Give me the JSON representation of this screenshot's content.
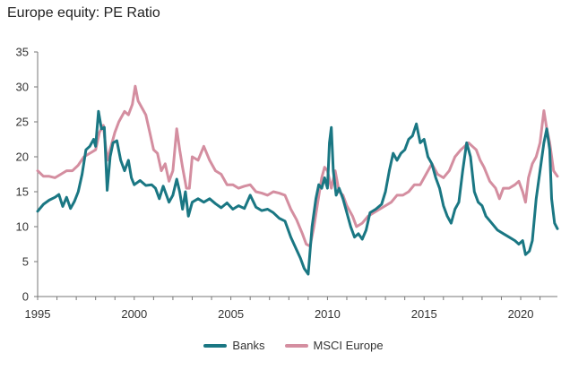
{
  "chart_data": {
    "type": "line",
    "title": "Europe equity: PE Ratio",
    "xlabel": "",
    "ylabel": "",
    "xlim": [
      1995,
      2021.9
    ],
    "ylim": [
      0,
      35
    ],
    "x_ticks": [
      1995,
      2000,
      2005,
      2010,
      2015,
      2020
    ],
    "y_ticks": [
      0,
      5,
      10,
      15,
      20,
      25,
      30,
      35
    ],
    "grid": false,
    "legend_position": "bottom",
    "series": [
      {
        "name": "Banks",
        "color": "#1a7783",
        "points": [
          [
            1995.0,
            12.2
          ],
          [
            1995.3,
            13.2
          ],
          [
            1995.6,
            13.8
          ],
          [
            1995.9,
            14.2
          ],
          [
            1996.1,
            14.6
          ],
          [
            1996.3,
            12.9
          ],
          [
            1996.5,
            14.2
          ],
          [
            1996.7,
            12.6
          ],
          [
            1996.9,
            13.6
          ],
          [
            1997.1,
            15.0
          ],
          [
            1997.3,
            17.5
          ],
          [
            1997.5,
            21.0
          ],
          [
            1997.7,
            21.5
          ],
          [
            1997.9,
            22.5
          ],
          [
            1998.0,
            21.5
          ],
          [
            1998.15,
            26.5
          ],
          [
            1998.3,
            24.0
          ],
          [
            1998.45,
            24.2
          ],
          [
            1998.6,
            15.2
          ],
          [
            1998.75,
            20.0
          ],
          [
            1998.9,
            22.0
          ],
          [
            1999.1,
            22.3
          ],
          [
            1999.3,
            19.5
          ],
          [
            1999.5,
            18.0
          ],
          [
            1999.7,
            19.5
          ],
          [
            1999.85,
            17.0
          ],
          [
            2000.0,
            16.0
          ],
          [
            2000.3,
            16.6
          ],
          [
            2000.6,
            15.9
          ],
          [
            2000.9,
            16.0
          ],
          [
            2001.1,
            15.5
          ],
          [
            2001.3,
            14.0
          ],
          [
            2001.5,
            15.8
          ],
          [
            2001.8,
            13.5
          ],
          [
            2002.0,
            14.5
          ],
          [
            2002.2,
            16.8
          ],
          [
            2002.35,
            15.0
          ],
          [
            2002.5,
            12.5
          ],
          [
            2002.65,
            15.0
          ],
          [
            2002.8,
            11.5
          ],
          [
            2003.0,
            13.5
          ],
          [
            2003.3,
            14.0
          ],
          [
            2003.6,
            13.5
          ],
          [
            2003.9,
            14.0
          ],
          [
            2004.2,
            13.3
          ],
          [
            2004.5,
            12.7
          ],
          [
            2004.8,
            13.4
          ],
          [
            2005.1,
            12.5
          ],
          [
            2005.4,
            13.0
          ],
          [
            2005.7,
            12.6
          ],
          [
            2006.0,
            14.5
          ],
          [
            2006.3,
            12.8
          ],
          [
            2006.6,
            12.3
          ],
          [
            2006.9,
            12.5
          ],
          [
            2007.2,
            12.0
          ],
          [
            2007.5,
            11.2
          ],
          [
            2007.8,
            10.8
          ],
          [
            2008.1,
            8.5
          ],
          [
            2008.35,
            7.0
          ],
          [
            2008.6,
            5.5
          ],
          [
            2008.8,
            4.0
          ],
          [
            2009.0,
            3.2
          ],
          [
            2009.2,
            10.0
          ],
          [
            2009.4,
            14.0
          ],
          [
            2009.55,
            16.0
          ],
          [
            2009.7,
            15.5
          ],
          [
            2009.85,
            17.0
          ],
          [
            2010.0,
            15.5
          ],
          [
            2010.1,
            22.0
          ],
          [
            2010.2,
            24.2
          ],
          [
            2010.3,
            18.0
          ],
          [
            2010.45,
            14.5
          ],
          [
            2010.6,
            15.5
          ],
          [
            2010.8,
            14.0
          ],
          [
            2011.0,
            12.0
          ],
          [
            2011.2,
            10.0
          ],
          [
            2011.4,
            8.5
          ],
          [
            2011.6,
            9.0
          ],
          [
            2011.8,
            8.2
          ],
          [
            2012.0,
            9.5
          ],
          [
            2012.2,
            12.0
          ],
          [
            2012.5,
            12.5
          ],
          [
            2012.8,
            13.2
          ],
          [
            2013.0,
            15.0
          ],
          [
            2013.2,
            18.0
          ],
          [
            2013.4,
            20.5
          ],
          [
            2013.6,
            19.5
          ],
          [
            2013.8,
            20.5
          ],
          [
            2014.0,
            21.0
          ],
          [
            2014.2,
            22.5
          ],
          [
            2014.4,
            23.0
          ],
          [
            2014.6,
            24.7
          ],
          [
            2014.8,
            22.0
          ],
          [
            2015.0,
            22.5
          ],
          [
            2015.2,
            20.0
          ],
          [
            2015.4,
            19.0
          ],
          [
            2015.6,
            17.0
          ],
          [
            2015.8,
            15.5
          ],
          [
            2016.0,
            13.0
          ],
          [
            2016.2,
            11.5
          ],
          [
            2016.4,
            10.5
          ],
          [
            2016.6,
            12.5
          ],
          [
            2016.8,
            13.5
          ],
          [
            2017.0,
            18.0
          ],
          [
            2017.2,
            22.0
          ],
          [
            2017.4,
            20.0
          ],
          [
            2017.6,
            15.0
          ],
          [
            2017.8,
            13.5
          ],
          [
            2018.0,
            13.0
          ],
          [
            2018.2,
            11.5
          ],
          [
            2018.5,
            10.5
          ],
          [
            2018.8,
            9.5
          ],
          [
            2019.1,
            9.0
          ],
          [
            2019.4,
            8.5
          ],
          [
            2019.7,
            8.0
          ],
          [
            2019.9,
            7.5
          ],
          [
            2020.1,
            8.0
          ],
          [
            2020.25,
            6.0
          ],
          [
            2020.45,
            6.5
          ],
          [
            2020.6,
            8.0
          ],
          [
            2020.8,
            14.0
          ],
          [
            2021.0,
            18.0
          ],
          [
            2021.2,
            22.0
          ],
          [
            2021.35,
            24.0
          ],
          [
            2021.5,
            21.0
          ],
          [
            2021.6,
            14.0
          ],
          [
            2021.75,
            10.5
          ],
          [
            2021.9,
            9.7
          ]
        ]
      },
      {
        "name": "MSCI Europe",
        "color": "#d48ea0",
        "points": [
          [
            1995.0,
            18.0
          ],
          [
            1995.3,
            17.2
          ],
          [
            1995.6,
            17.2
          ],
          [
            1995.9,
            17.0
          ],
          [
            1996.2,
            17.5
          ],
          [
            1996.5,
            18.0
          ],
          [
            1996.8,
            18.0
          ],
          [
            1997.1,
            18.8
          ],
          [
            1997.4,
            20.0
          ],
          [
            1997.7,
            20.5
          ],
          [
            1998.0,
            21.0
          ],
          [
            1998.2,
            23.5
          ],
          [
            1998.4,
            24.5
          ],
          [
            1998.6,
            19.5
          ],
          [
            1998.8,
            21.5
          ],
          [
            1999.0,
            23.5
          ],
          [
            1999.2,
            25.0
          ],
          [
            1999.5,
            26.5
          ],
          [
            1999.7,
            26.0
          ],
          [
            1999.9,
            27.5
          ],
          [
            2000.05,
            30.1
          ],
          [
            2000.2,
            28.0
          ],
          [
            2000.4,
            27.0
          ],
          [
            2000.6,
            26.0
          ],
          [
            2000.8,
            23.5
          ],
          [
            2001.0,
            21.0
          ],
          [
            2001.2,
            20.5
          ],
          [
            2001.4,
            18.0
          ],
          [
            2001.6,
            19.0
          ],
          [
            2001.8,
            16.5
          ],
          [
            2002.0,
            18.0
          ],
          [
            2002.2,
            24.0
          ],
          [
            2002.35,
            21.0
          ],
          [
            2002.5,
            18.5
          ],
          [
            2002.7,
            15.5
          ],
          [
            2002.85,
            15.5
          ],
          [
            2003.0,
            20.0
          ],
          [
            2003.3,
            19.5
          ],
          [
            2003.6,
            21.5
          ],
          [
            2003.9,
            19.5
          ],
          [
            2004.2,
            18.0
          ],
          [
            2004.5,
            17.5
          ],
          [
            2004.8,
            16.0
          ],
          [
            2005.1,
            16.0
          ],
          [
            2005.4,
            15.5
          ],
          [
            2005.7,
            15.8
          ],
          [
            2006.0,
            16.0
          ],
          [
            2006.3,
            15.0
          ],
          [
            2006.6,
            14.8
          ],
          [
            2006.9,
            14.5
          ],
          [
            2007.2,
            15.0
          ],
          [
            2007.5,
            14.8
          ],
          [
            2007.8,
            14.5
          ],
          [
            2008.1,
            12.5
          ],
          [
            2008.4,
            11.0
          ],
          [
            2008.7,
            9.0
          ],
          [
            2008.9,
            7.5
          ],
          [
            2009.1,
            7.2
          ],
          [
            2009.3,
            10.0
          ],
          [
            2009.5,
            13.5
          ],
          [
            2009.7,
            17.0
          ],
          [
            2009.85,
            18.5
          ],
          [
            2010.0,
            18.0
          ],
          [
            2010.2,
            15.5
          ],
          [
            2010.4,
            18.0
          ],
          [
            2010.6,
            15.0
          ],
          [
            2010.8,
            14.5
          ],
          [
            2011.0,
            13.0
          ],
          [
            2011.3,
            11.5
          ],
          [
            2011.5,
            10.0
          ],
          [
            2011.8,
            10.5
          ],
          [
            2012.1,
            11.5
          ],
          [
            2012.4,
            12.0
          ],
          [
            2012.7,
            12.5
          ],
          [
            2013.0,
            13.0
          ],
          [
            2013.3,
            13.5
          ],
          [
            2013.6,
            14.5
          ],
          [
            2013.9,
            14.5
          ],
          [
            2014.2,
            15.0
          ],
          [
            2014.5,
            16.0
          ],
          [
            2014.8,
            16.0
          ],
          [
            2015.1,
            17.5
          ],
          [
            2015.4,
            19.0
          ],
          [
            2015.7,
            17.5
          ],
          [
            2016.0,
            17.0
          ],
          [
            2016.3,
            18.0
          ],
          [
            2016.6,
            20.0
          ],
          [
            2016.9,
            21.0
          ],
          [
            2017.1,
            21.5
          ],
          [
            2017.3,
            22.0
          ],
          [
            2017.5,
            21.5
          ],
          [
            2017.7,
            21.0
          ],
          [
            2017.9,
            19.5
          ],
          [
            2018.1,
            18.5
          ],
          [
            2018.4,
            16.5
          ],
          [
            2018.7,
            15.5
          ],
          [
            2018.9,
            14.0
          ],
          [
            2019.1,
            15.5
          ],
          [
            2019.4,
            15.5
          ],
          [
            2019.7,
            16.0
          ],
          [
            2019.9,
            16.5
          ],
          [
            2020.1,
            15.0
          ],
          [
            2020.25,
            13.5
          ],
          [
            2020.4,
            17.0
          ],
          [
            2020.6,
            19.0
          ],
          [
            2020.8,
            20.0
          ],
          [
            2021.0,
            22.0
          ],
          [
            2021.2,
            26.6
          ],
          [
            2021.35,
            24.0
          ],
          [
            2021.5,
            22.0
          ],
          [
            2021.7,
            18.0
          ],
          [
            2021.9,
            17.2
          ]
        ]
      }
    ]
  },
  "legend": {
    "items": [
      "Banks",
      "MSCI Europe"
    ]
  }
}
